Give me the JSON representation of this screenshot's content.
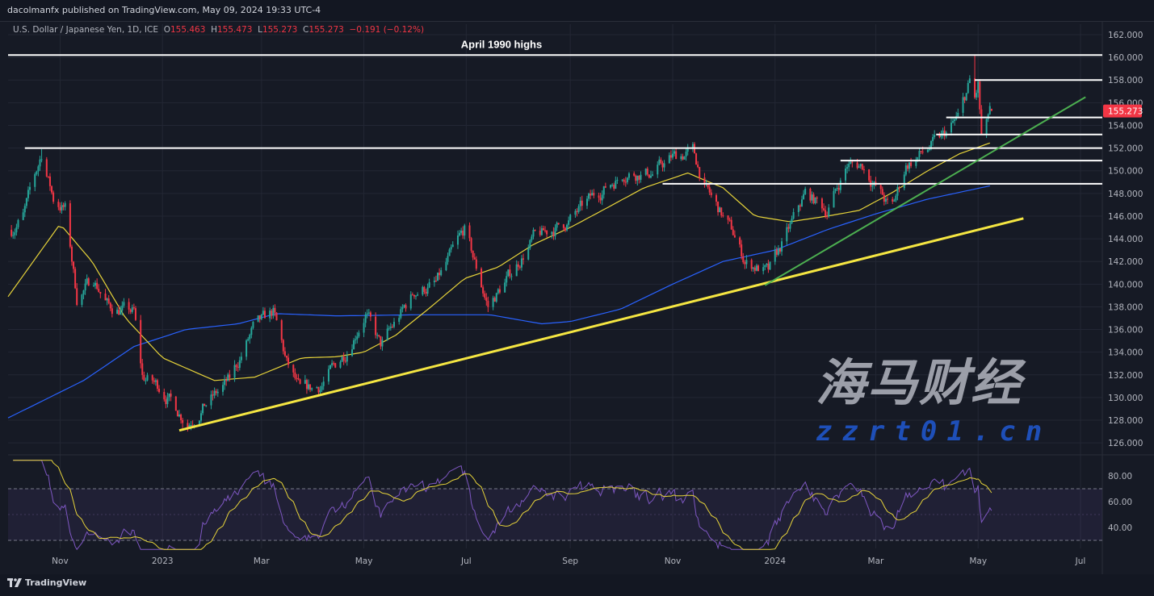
{
  "header": {
    "publisher": "dacolmanfx published on TradingView.com, May 09, 2024 19:33 UTC-4",
    "symbol": "U.S. Dollar / Japanese Yen, 1D, ICE",
    "o_label": "O",
    "o": "155.463",
    "h_label": "H",
    "h": "155.473",
    "l_label": "L",
    "l": "155.273",
    "c_label": "C",
    "c": "155.273",
    "change": "−0.191 (−0.12%)"
  },
  "footer": {
    "logo": "TradingView"
  },
  "watermark": {
    "title": "海马财经",
    "url": "zzrt01.cn"
  },
  "colors": {
    "background": "#161a25",
    "up": "#26a69a",
    "down": "#f23645",
    "ma_fast": "#e6d33a",
    "ma_slow": "#2962ff",
    "rsi": "#7e57c2",
    "rsi_ma": "#e6d33a",
    "support_trend": "#f5e642",
    "channel_trend": "#4caf50",
    "level": "#ffffff",
    "price_label": "#f23645"
  },
  "chart_data": {
    "type": "candlestick",
    "price_axis": {
      "range": [
        125,
        163
      ],
      "ticks": [
        "162.000",
        "160.000",
        "158.000",
        "156.000",
        "154.000",
        "152.000",
        "150.000",
        "148.000",
        "146.000",
        "144.000",
        "142.000",
        "140.000",
        "138.000",
        "136.000",
        "134.000",
        "132.000",
        "130.000",
        "128.000",
        "126.000"
      ]
    },
    "time_axis": {
      "range": [
        "2022-10-01",
        "2024-07-14"
      ],
      "ticks": [
        {
          "label": "Nov",
          "date": "2022-11-01"
        },
        {
          "label": "2023",
          "date": "2023-01-01"
        },
        {
          "label": "Mar",
          "date": "2023-03-01"
        },
        {
          "label": "May",
          "date": "2023-05-01"
        },
        {
          "label": "Jul",
          "date": "2023-07-01"
        },
        {
          "label": "Sep",
          "date": "2023-09-01"
        },
        {
          "label": "Nov",
          "date": "2023-11-01"
        },
        {
          "label": "2024",
          "date": "2024-01-01"
        },
        {
          "label": "Mar",
          "date": "2024-03-01"
        },
        {
          "label": "May",
          "date": "2024-05-01"
        },
        {
          "label": "Jul",
          "date": "2024-07-01"
        }
      ]
    },
    "current_price": "155.273",
    "last_bar": {
      "date": "2024-05-09",
      "open": 155.463,
      "high": 155.473,
      "low": 155.273,
      "close": 155.273
    },
    "close_path": [
      [
        "2022-10-03",
        144.8
      ],
      [
        "2022-10-10",
        146
      ],
      [
        "2022-10-21",
        151.5
      ],
      [
        "2022-10-28",
        147.5
      ],
      [
        "2022-11-04",
        146.6
      ],
      [
        "2022-11-11",
        138.8
      ],
      [
        "2022-11-21",
        140.5
      ],
      [
        "2022-11-30",
        138
      ],
      [
        "2022-12-15",
        137.5
      ],
      [
        "2022-12-20",
        131.8
      ],
      [
        "2022-12-30",
        131
      ],
      [
        "2023-01-16",
        127.8
      ],
      [
        "2023-01-31",
        130
      ],
      [
        "2023-02-10",
        131.5
      ],
      [
        "2023-02-24",
        136
      ],
      [
        "2023-03-08",
        137.5
      ],
      [
        "2023-03-16",
        133
      ],
      [
        "2023-03-24",
        130.5
      ],
      [
        "2023-04-05",
        131
      ],
      [
        "2023-04-20",
        134
      ],
      [
        "2023-04-28",
        136.3
      ],
      [
        "2023-05-02",
        137.5
      ],
      [
        "2023-05-11",
        134.5
      ],
      [
        "2023-05-31",
        139.3
      ],
      [
        "2023-06-13",
        140
      ],
      [
        "2023-06-30",
        144.8
      ],
      [
        "2023-07-14",
        138
      ],
      [
        "2023-07-28",
        141
      ],
      [
        "2023-08-10",
        144
      ],
      [
        "2023-08-31",
        145.5
      ],
      [
        "2023-09-15",
        147.8
      ],
      [
        "2023-09-29",
        149.3
      ],
      [
        "2023-10-03",
        149.8
      ],
      [
        "2023-10-20",
        149.8
      ],
      [
        "2023-11-01",
        151.2
      ],
      [
        "2023-11-13",
        151.7
      ],
      [
        "2023-11-21",
        148.3
      ],
      [
        "2023-12-07",
        144.5
      ],
      [
        "2023-12-14",
        142
      ],
      [
        "2023-12-28",
        141
      ],
      [
        "2024-01-10",
        145
      ],
      [
        "2024-01-19",
        148
      ],
      [
        "2024-02-01",
        146.5
      ],
      [
        "2024-02-13",
        150.5
      ],
      [
        "2024-02-22",
        150.5
      ],
      [
        "2024-03-08",
        147
      ],
      [
        "2024-03-11",
        146.8
      ],
      [
        "2024-03-19",
        150.5
      ],
      [
        "2024-03-27",
        151.3
      ],
      [
        "2024-04-10",
        153
      ],
      [
        "2024-04-19",
        154.6
      ],
      [
        "2024-04-26",
        157.8
      ],
      [
        "2024-04-29",
        156.2
      ],
      [
        "2024-05-01",
        157.5
      ],
      [
        "2024-05-03",
        153
      ],
      [
        "2024-05-06",
        153.9
      ],
      [
        "2024-05-08",
        155.5
      ],
      [
        "2024-05-09",
        155.27
      ]
    ],
    "spike_highs": [
      [
        "2022-10-21",
        151.9
      ],
      [
        "2024-04-29",
        160.2
      ]
    ],
    "moving_average_fast": [
      [
        "2022-10-01",
        138.9
      ],
      [
        "2022-11-01",
        145.3
      ],
      [
        "2022-11-20",
        142
      ],
      [
        "2022-12-10",
        137
      ],
      [
        "2023-01-01",
        133.5
      ],
      [
        "2023-02-01",
        131.5
      ],
      [
        "2023-02-25",
        131.8
      ],
      [
        "2023-03-25",
        133.5
      ],
      [
        "2023-04-15",
        133.6
      ],
      [
        "2023-05-01",
        134
      ],
      [
        "2023-05-20",
        135.5
      ],
      [
        "2023-06-10",
        138
      ],
      [
        "2023-06-30",
        140.5
      ],
      [
        "2023-07-20",
        141.5
      ],
      [
        "2023-08-10",
        143.5
      ],
      [
        "2023-09-01",
        145
      ],
      [
        "2023-09-20",
        146.5
      ],
      [
        "2023-10-15",
        148.5
      ],
      [
        "2023-11-10",
        149.8
      ],
      [
        "2023-12-01",
        148.5
      ],
      [
        "2023-12-20",
        146
      ],
      [
        "2024-01-10",
        145.5
      ],
      [
        "2024-02-01",
        146
      ],
      [
        "2024-02-20",
        146.5
      ],
      [
        "2024-03-10",
        148
      ],
      [
        "2024-04-01",
        150
      ],
      [
        "2024-04-20",
        151.5
      ],
      [
        "2024-05-09",
        152.5
      ]
    ],
    "moving_average_slow": [
      [
        "2022-10-01",
        128.2
      ],
      [
        "2022-11-15",
        131.5
      ],
      [
        "2022-12-15",
        134.5
      ],
      [
        "2023-01-15",
        136
      ],
      [
        "2023-02-15",
        136.5
      ],
      [
        "2023-03-10",
        137.4
      ],
      [
        "2023-04-15",
        137.2
      ],
      [
        "2023-06-01",
        137.3
      ],
      [
        "2023-07-15",
        137.3
      ],
      [
        "2023-08-15",
        136.5
      ],
      [
        "2023-09-01",
        136.7
      ],
      [
        "2023-10-01",
        137.8
      ],
      [
        "2023-11-01",
        140
      ],
      [
        "2023-12-01",
        142
      ],
      [
        "2024-01-01",
        143
      ],
      [
        "2024-02-01",
        144.8
      ],
      [
        "2024-03-01",
        146.2
      ],
      [
        "2024-04-01",
        147.5
      ],
      [
        "2024-05-09",
        148.7
      ]
    ],
    "levels": [
      {
        "price": 160.2,
        "from": "2022-10-01",
        "label": "April 1990 highs"
      },
      {
        "price": 158.0,
        "from": "2024-04-29"
      },
      {
        "price": 154.7,
        "from": "2024-04-12"
      },
      {
        "price": 153.2,
        "from": "2024-04-06"
      },
      {
        "price": 152.0,
        "from": "2022-10-11"
      },
      {
        "price": 150.9,
        "from": "2024-02-09"
      },
      {
        "price": 148.85,
        "from": "2023-10-26"
      }
    ],
    "trendlines": [
      {
        "name": "support",
        "from": [
          "2023-01-11",
          127.1
        ],
        "to": [
          "2024-05-28",
          145.8
        ]
      },
      {
        "name": "channel",
        "from": [
          "2023-12-26",
          139.9
        ],
        "to": [
          "2024-07-04",
          156.5
        ]
      }
    ],
    "rsi": {
      "axis_ticks": [
        "80.00",
        "60.00",
        "40.00"
      ],
      "range": [
        23,
        92
      ],
      "upper_band": 70,
      "lower_band": 30,
      "period": 14
    }
  }
}
